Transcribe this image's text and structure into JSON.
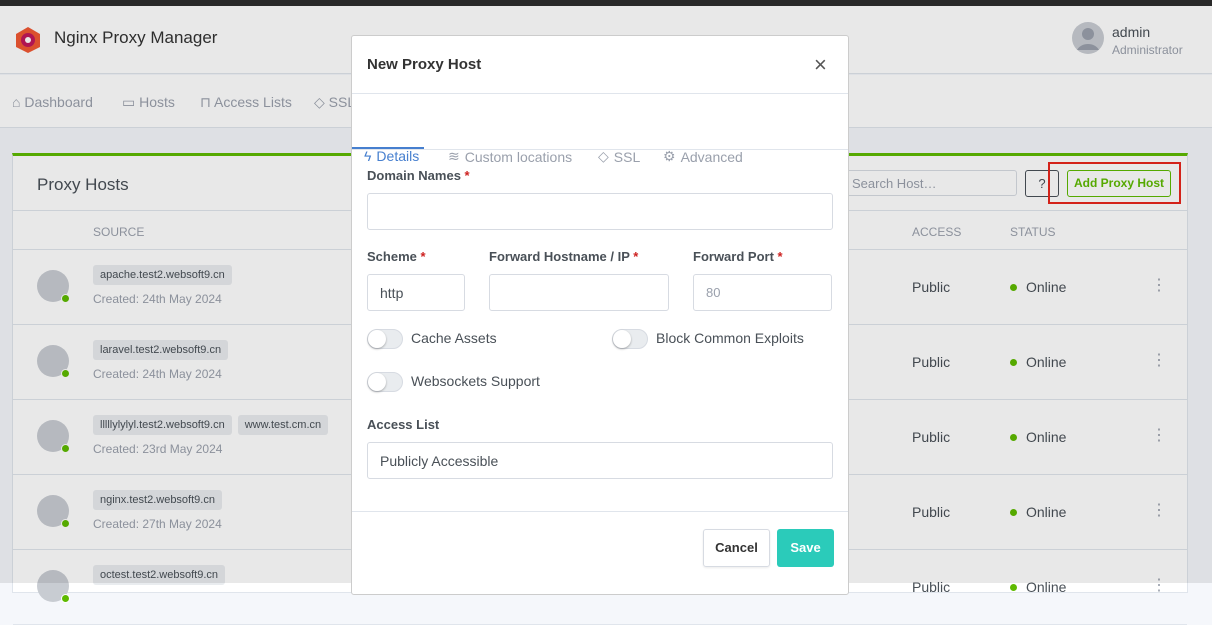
{
  "header": {
    "brand": "Nginx Proxy Manager",
    "user": {
      "name": "admin",
      "role": "Administrator"
    }
  },
  "nav": [
    "Dashboard",
    "Hosts",
    "Access Lists",
    "SSL"
  ],
  "card": {
    "title": "Proxy Hosts",
    "search_placeholder": "Search Host…",
    "help": "?",
    "add_button": "Add Proxy Host",
    "columns": [
      "SOURCE",
      "ACCESS",
      "STATUS"
    ],
    "rows": [
      {
        "domains": [
          "apache.test2.websoft9.cn"
        ],
        "created": "Created: 24th May 2024",
        "access": "Public",
        "status": "Online"
      },
      {
        "domains": [
          "laravel.test2.websoft9.cn"
        ],
        "created": "Created: 24th May 2024",
        "access": "Public",
        "status": "Online"
      },
      {
        "domains": [
          "lllllylylyl.test2.websoft9.cn",
          "www.test.cm.cn"
        ],
        "created": "Created: 23rd May 2024",
        "access": "Public",
        "status": "Online"
      },
      {
        "domains": [
          "nginx.test2.websoft9.cn"
        ],
        "created": "Created: 27th May 2024",
        "access": "Public",
        "status": "Online"
      },
      {
        "domains": [
          "octest.test2.websoft9.cn"
        ],
        "access": "Public",
        "status": "Online"
      }
    ]
  },
  "modal": {
    "title": "New Proxy Host",
    "close": "×",
    "tabs": [
      "Details",
      "Custom locations",
      "SSL",
      "Advanced"
    ],
    "required_mark": "*",
    "domain_names": {
      "label": "Domain Names"
    },
    "scheme": {
      "label": "Scheme",
      "value": "http"
    },
    "forward_host": {
      "label": "Forward Hostname / IP"
    },
    "forward_port": {
      "label": "Forward Port",
      "placeholder": "80"
    },
    "toggles": [
      "Cache Assets",
      "Block Common Exploits",
      "Websockets Support"
    ],
    "access_list": {
      "label": "Access List",
      "value": "Publicly Accessible"
    },
    "cancel": "Cancel",
    "save": "Save"
  }
}
